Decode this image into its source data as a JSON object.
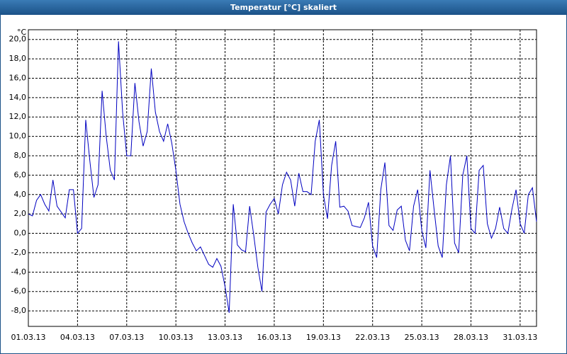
{
  "chart_data": {
    "type": "line",
    "title": "Temperatur [°C] skaliert",
    "y_unit": "°C",
    "x": [
      1,
      1.25,
      1.5,
      1.75,
      2,
      2.25,
      2.5,
      2.75,
      3,
      3.25,
      3.5,
      3.75,
      4,
      4.25,
      4.5,
      4.75,
      5,
      5.25,
      5.5,
      5.75,
      6,
      6.25,
      6.5,
      6.75,
      7,
      7.25,
      7.5,
      7.75,
      8,
      8.25,
      8.5,
      8.75,
      9,
      9.25,
      9.5,
      9.75,
      10,
      10.25,
      10.5,
      10.75,
      11,
      11.25,
      11.5,
      11.75,
      12,
      12.25,
      12.5,
      12.75,
      13,
      13.25,
      13.5,
      13.75,
      14,
      14.25,
      14.5,
      14.75,
      15,
      15.25,
      15.5,
      15.75,
      16,
      16.25,
      16.5,
      16.75,
      17,
      17.25,
      17.5,
      17.75,
      18,
      18.25,
      18.5,
      18.75,
      19,
      19.25,
      19.5,
      19.75,
      20,
      20.25,
      20.5,
      20.75,
      21,
      21.25,
      21.5,
      21.75,
      22,
      22.25,
      22.5,
      22.75,
      23,
      23.25,
      23.5,
      23.75,
      24,
      24.25,
      24.5,
      24.75,
      25,
      25.25,
      25.5,
      25.75,
      26,
      26.25,
      26.5,
      26.75,
      27,
      27.25,
      27.5,
      27.75,
      28,
      28.25,
      28.5,
      28.75,
      29,
      29.25,
      29.5,
      29.75,
      30,
      30.25,
      30.5,
      30.75,
      31,
      31.25,
      31.5,
      31.75,
      32
    ],
    "series": [
      {
        "color": "#0000c0",
        "values": [
          2.0,
          1.8,
          3.4,
          4.0,
          3.0,
          2.3,
          5.5,
          2.8,
          2.2,
          1.6,
          4.5,
          4.5,
          0.0,
          0.5,
          11.7,
          7.5,
          3.7,
          5.0,
          14.7,
          10.0,
          6.5,
          5.5,
          19.8,
          12.5,
          8.0,
          8.0,
          15.5,
          11.5,
          9.0,
          10.5,
          17.0,
          12.5,
          10.5,
          9.5,
          11.3,
          9.3,
          6.5,
          3.0,
          1.2,
          0.0,
          -1.0,
          -1.8,
          -1.4,
          -2.3,
          -3.2,
          -3.5,
          -2.6,
          -3.4,
          -5.5,
          -8.2,
          3.0,
          -1.2,
          -1.7,
          -1.9,
          2.8,
          -0.2,
          -3.5,
          -6.0,
          2.2,
          3.0,
          3.6,
          2.0,
          5.0,
          6.3,
          5.5,
          2.8,
          6.2,
          4.3,
          4.3,
          4.0,
          9.5,
          11.7,
          4.0,
          1.5,
          7.0,
          9.5,
          2.7,
          2.8,
          2.3,
          0.8,
          0.7,
          0.6,
          1.6,
          3.2,
          -1.3,
          -2.5,
          4.5,
          7.3,
          0.8,
          0.3,
          2.4,
          2.8,
          -0.7,
          -1.8,
          2.8,
          4.5,
          0.3,
          -1.5,
          6.5,
          2.5,
          -1.3,
          -2.5,
          5.0,
          8.0,
          -1.0,
          -2.0,
          6.0,
          8.0,
          0.5,
          0.0,
          6.5,
          7.0,
          1.0,
          -0.5,
          0.5,
          2.7,
          0.5,
          0.0,
          2.5,
          4.5,
          1.0,
          0.0,
          4.0,
          4.7,
          1.2
        ]
      }
    ],
    "xlim": [
      1,
      32
    ],
    "xticks": [
      {
        "value": 1,
        "label": "01.03.13"
      },
      {
        "value": 4,
        "label": "04.03.13"
      },
      {
        "value": 7,
        "label": "07.03.13"
      },
      {
        "value": 10,
        "label": "10.03.13"
      },
      {
        "value": 13,
        "label": "13.03.13"
      },
      {
        "value": 16,
        "label": "16.03.13"
      },
      {
        "value": 19,
        "label": "19.03.13"
      },
      {
        "value": 22,
        "label": "22.03.13"
      },
      {
        "value": 25,
        "label": "25.03.13"
      },
      {
        "value": 28,
        "label": "28.03.13"
      },
      {
        "value": 31,
        "label": "31.03.13"
      }
    ],
    "ylim": [
      -9.6,
      21
    ],
    "yticks": [
      {
        "value": -8,
        "label": "-8,0"
      },
      {
        "value": -6,
        "label": "-6,0"
      },
      {
        "value": -4,
        "label": "-4,0"
      },
      {
        "value": -2,
        "label": "-2,0"
      },
      {
        "value": 0,
        "label": "0,0"
      },
      {
        "value": 2,
        "label": "2,0"
      },
      {
        "value": 4,
        "label": "4,0"
      },
      {
        "value": 6,
        "label": "6,0"
      },
      {
        "value": 8,
        "label": "8,0"
      },
      {
        "value": 10,
        "label": "10,0"
      },
      {
        "value": 12,
        "label": "12,0"
      },
      {
        "value": 14,
        "label": "14,0"
      },
      {
        "value": 16,
        "label": "16,0"
      },
      {
        "value": 18,
        "label": "18,0"
      },
      {
        "value": 20,
        "label": "20,0"
      }
    ],
    "grid": true
  }
}
